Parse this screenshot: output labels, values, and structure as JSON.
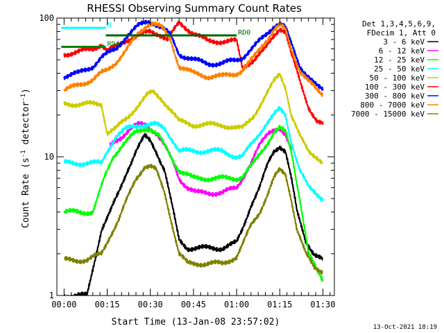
{
  "chart_data": {
    "type": "line",
    "title": "RHESSI Observing Summary Count Rates",
    "xlabel": "Start Time (13-Jan-08 23:57:02)",
    "ylabel_main": "Count Rate (s",
    "ylabel_sup": "-1",
    "ylabel_rest": " detector",
    "ylabel_sup2": "-1",
    "ylabel_end": ")",
    "y_scale": "log",
    "ylim": [
      1,
      100
    ],
    "xlim_minutes": [
      -2.5,
      94
    ],
    "x_ticks": [
      {
        "label": "00:00",
        "min": 0
      },
      {
        "label": "00:15",
        "min": 15
      },
      {
        "label": "00:30",
        "min": 30
      },
      {
        "label": "00:45",
        "min": 45
      },
      {
        "label": "01:00",
        "min": 60
      },
      {
        "label": "01:15",
        "min": 75
      },
      {
        "label": "01:30",
        "min": 90
      }
    ],
    "y_ticks": [
      {
        "label": "1",
        "value": 1
      },
      {
        "label": "10",
        "value": 10
      },
      {
        "label": "100",
        "value": 100
      }
    ],
    "legend_header": [
      "Det 1,3,4,5,6,9,",
      "FDecim 1, Att 0"
    ],
    "series": [
      {
        "name": "3 - 6 keV",
        "color": "#000000",
        "x": [
          0,
          3,
          8,
          13,
          16,
          19,
          22,
          25,
          28,
          30,
          32,
          35,
          38,
          40,
          43,
          46,
          50,
          55,
          60,
          62,
          65,
          68,
          71,
          73,
          75,
          77,
          79,
          81,
          84,
          87,
          90
        ],
        "y": [
          1,
          1,
          1,
          3,
          4,
          5.5,
          8,
          11,
          14,
          13,
          11,
          8,
          4,
          2.5,
          2.2,
          2.2,
          2.2,
          2.2,
          2.4,
          3,
          4.5,
          6,
          9,
          11,
          12,
          11,
          7,
          4,
          2.5,
          2,
          1.8
        ]
      },
      {
        "name": "6 - 12 keV",
        "color": "#ff00ff",
        "x": [
          16,
          18,
          20,
          23,
          26,
          28,
          30,
          32,
          35,
          38,
          40,
          43,
          46,
          50,
          55,
          60,
          62,
          65,
          68,
          71,
          73,
          75,
          77,
          79
        ],
        "y": [
          12,
          13,
          14,
          16,
          17,
          17,
          16,
          15,
          12,
          9,
          7,
          6,
          5.5,
          5.5,
          5.5,
          6,
          7,
          9,
          12,
          15,
          16,
          16,
          14,
          11
        ]
      },
      {
        "name": "12 - 25 keV",
        "color": "#00ff00",
        "x": [
          0,
          5,
          10,
          14,
          17,
          20,
          25,
          28,
          30,
          33,
          36,
          40,
          45,
          50,
          55,
          60,
          62,
          66,
          70,
          73,
          75,
          77,
          79,
          82,
          85,
          88,
          90
        ],
        "y": [
          4,
          4,
          4,
          7,
          10,
          12,
          15,
          16,
          16,
          14,
          11,
          8,
          7,
          7,
          7,
          7,
          7.2,
          9,
          12,
          15,
          16,
          15,
          11,
          5,
          2,
          1.5,
          1.3
        ]
      },
      {
        "name": "25 - 50 keV",
        "color": "#00ffff",
        "x": [
          0,
          5,
          10,
          13,
          15,
          18,
          22,
          26,
          30,
          32,
          35,
          38,
          40,
          45,
          50,
          55,
          60,
          62,
          66,
          70,
          73,
          75,
          77,
          79,
          82,
          85,
          90
        ],
        "y": [
          9,
          9,
          9,
          9,
          11,
          14,
          16,
          17,
          17,
          17,
          16,
          13,
          11,
          11,
          11,
          11,
          10,
          10,
          13,
          17,
          20,
          22,
          20,
          13,
          8,
          6,
          5
        ]
      },
      {
        "name": "50 - 100 keV",
        "color": "#cccc00",
        "x": [
          0,
          5,
          10,
          13,
          15,
          18,
          22,
          26,
          29,
          31,
          34,
          37,
          40,
          45,
          50,
          55,
          60,
          62,
          66,
          70,
          73,
          75,
          77,
          79,
          82,
          85,
          88,
          90
        ],
        "y": [
          24,
          24,
          24,
          24,
          15,
          16,
          19,
          24,
          28,
          29,
          26,
          22,
          18,
          17,
          17,
          17,
          16,
          16,
          20,
          27,
          35,
          40,
          32,
          20,
          14,
          11,
          10,
          9
        ]
      },
      {
        "name": "100 - 300 keV",
        "color": "#ff0000",
        "x": [
          0,
          5,
          10,
          13,
          15,
          18,
          22,
          26,
          30,
          33,
          36,
          40,
          45,
          50,
          55,
          60,
          62,
          66,
          70,
          73,
          75,
          77,
          79,
          82,
          85,
          88,
          90
        ],
        "y": [
          55,
          57,
          60,
          65,
          58,
          62,
          70,
          75,
          80,
          77,
          70,
          92,
          78,
          68,
          68,
          68,
          44,
          50,
          60,
          75,
          85,
          80,
          55,
          35,
          23,
          18,
          17
        ]
      },
      {
        "name": "300 - 800 keV",
        "color": "#0000ff",
        "x": [
          0,
          5,
          10,
          13,
          15,
          18,
          22,
          26,
          29,
          31,
          34,
          37,
          40,
          45,
          50,
          55,
          60,
          62,
          66,
          70,
          73,
          75,
          77,
          79,
          82,
          85,
          88,
          90
        ],
        "y": [
          38,
          40,
          45,
          52,
          55,
          60,
          75,
          88,
          95,
          93,
          85,
          75,
          55,
          50,
          47,
          47,
          50,
          52,
          62,
          75,
          88,
          92,
          85,
          65,
          45,
          38,
          32,
          30
        ]
      },
      {
        "name": "800 - 7000 keV",
        "color": "#ff8000",
        "x": [
          0,
          5,
          10,
          13,
          15,
          18,
          22,
          26,
          29,
          31,
          34,
          37,
          40,
          45,
          50,
          55,
          60,
          62,
          66,
          70,
          73,
          75,
          77,
          79,
          82,
          85,
          88,
          90
        ],
        "y": [
          30,
          33,
          36,
          40,
          42,
          48,
          60,
          78,
          90,
          92,
          85,
          70,
          45,
          40,
          38,
          38,
          40,
          42,
          52,
          68,
          82,
          88,
          82,
          60,
          42,
          35,
          30,
          28
        ]
      },
      {
        "name": "7000 - 15000 keV",
        "color": "#808000",
        "x": [
          0,
          3,
          8,
          13,
          16,
          19,
          22,
          25,
          28,
          30,
          32,
          35,
          38,
          40,
          43,
          46,
          50,
          55,
          60,
          62,
          65,
          68,
          71,
          73,
          75,
          77,
          79,
          81,
          84,
          87,
          90
        ],
        "y": [
          1.8,
          1.8,
          1.8,
          2,
          2.7,
          3.5,
          5,
          7,
          8.5,
          8.5,
          8,
          5.5,
          3,
          2,
          1.7,
          1.7,
          1.7,
          1.7,
          1.9,
          2.3,
          3.2,
          4,
          5.5,
          7,
          8,
          7.5,
          5,
          3,
          2,
          1.6,
          1.5
        ]
      }
    ],
    "markers": [
      {
        "label": "N",
        "color": "#00ffff",
        "x_start": -1,
        "x_end": 14.5,
        "level": 85
      },
      {
        "label": "RD0",
        "color": "#006400",
        "x_start": 14.5,
        "x_end": 60,
        "level": 75
      },
      {
        "label": "RD4",
        "color": "#008000",
        "x_start": -1,
        "x_end": 14.5,
        "level": 62
      }
    ],
    "timestamp": "13-Oct-2021 18:19"
  }
}
